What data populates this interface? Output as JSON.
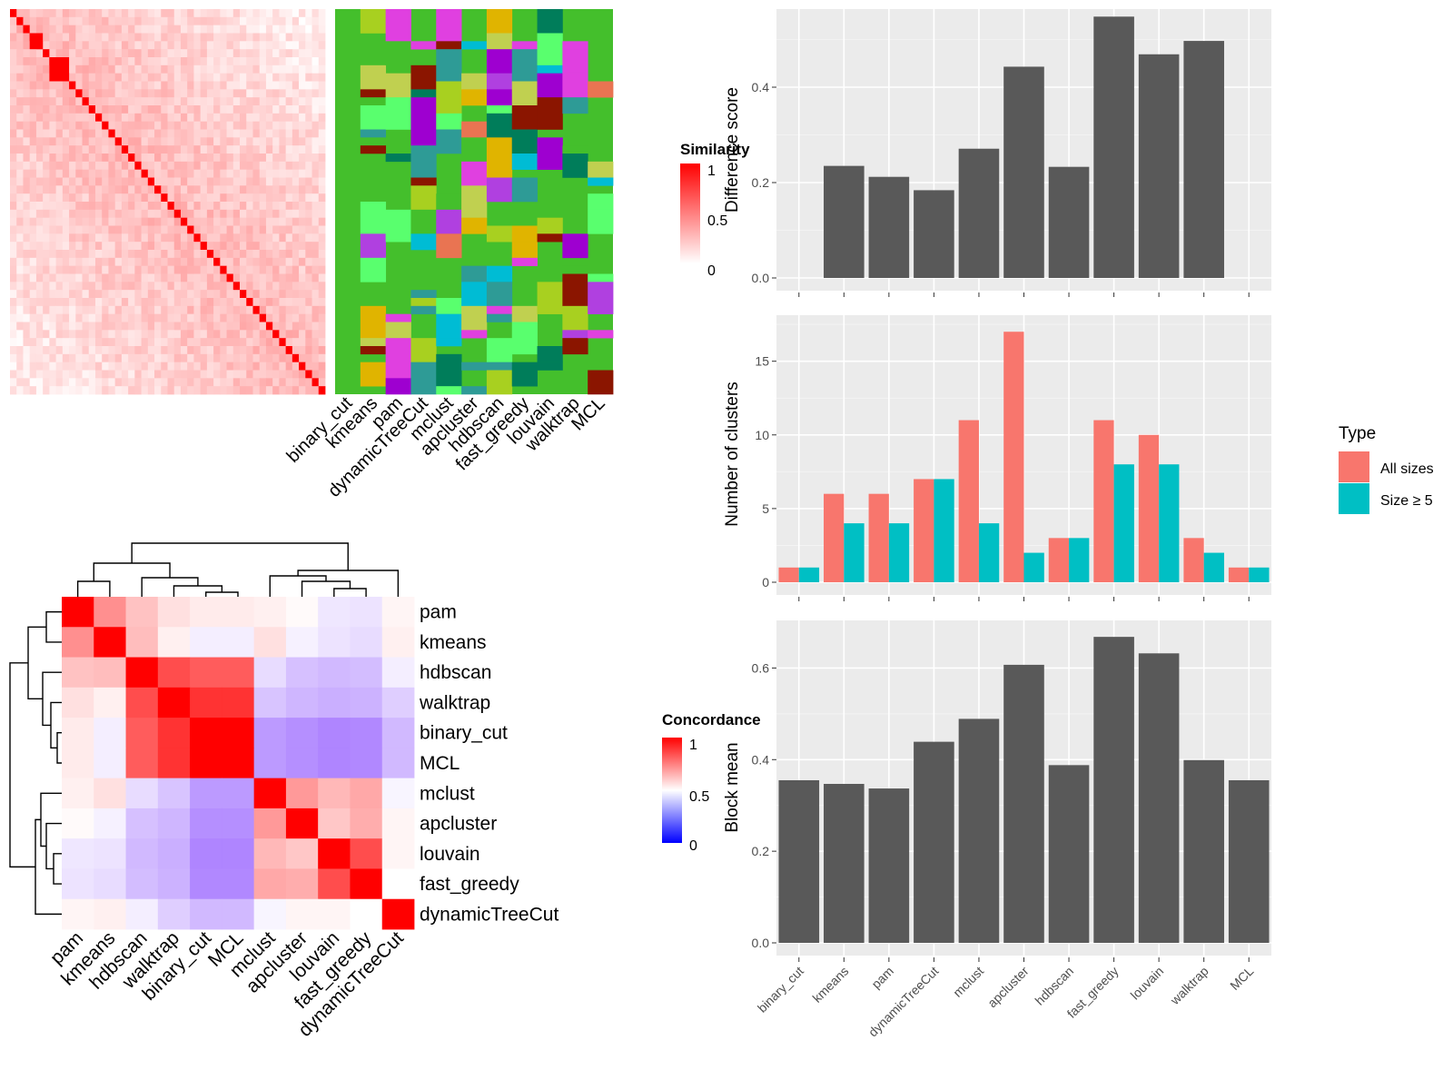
{
  "colors": {
    "bar_dark": "#595959",
    "panel_bg": "#ebebeb",
    "grid_major": "#ffffff",
    "all_sizes": "#F8766D",
    "size_ge5": "#00BFC4",
    "heat_high": "#ff0000",
    "heat_mid": "#ffffff",
    "heat_low": "#0000ff",
    "cluster_bg": "#44bf2c"
  },
  "similarity_heatmap": {
    "legend_title": "Similarity",
    "legend_ticks": [
      "1",
      "0.5",
      "0"
    ],
    "n": 48
  },
  "membership_heatmap": {
    "methods": [
      "binary_cut",
      "kmeans",
      "pam",
      "dynamicTreeCut",
      "mclust",
      "apcluster",
      "hdbscan",
      "fast_greedy",
      "louvain",
      "walktrap",
      "MCL"
    ],
    "palette": [
      "#44bf2c",
      "#00bcd4",
      "#e0b400",
      "#9e00d0",
      "#e040e0",
      "#e97452",
      "#007d5a",
      "#8b1500",
      "#59ff6e",
      "#a8d020",
      "#c0d050",
      "#2e9b96",
      "#b040e0"
    ]
  },
  "concordance_heatmap": {
    "legend_title": "Concordance",
    "legend_ticks": [
      "1",
      "0.5",
      "0"
    ],
    "methods": [
      "pam",
      "kmeans",
      "hdbscan",
      "walktrap",
      "binary_cut",
      "MCL",
      "mclust",
      "apcluster",
      "louvain",
      "fast_greedy",
      "dynamicTreeCut"
    ],
    "matrix": [
      [
        1.0,
        0.72,
        0.62,
        0.56,
        0.54,
        0.54,
        0.53,
        0.51,
        0.43,
        0.42,
        0.52
      ],
      [
        0.72,
        1.0,
        0.63,
        0.53,
        0.45,
        0.45,
        0.56,
        0.46,
        0.42,
        0.4,
        0.53
      ],
      [
        0.62,
        0.63,
        1.0,
        0.85,
        0.82,
        0.82,
        0.4,
        0.32,
        0.3,
        0.31,
        0.45
      ],
      [
        0.56,
        0.53,
        0.85,
        1.0,
        0.9,
        0.9,
        0.33,
        0.29,
        0.27,
        0.28,
        0.36
      ],
      [
        0.54,
        0.45,
        0.82,
        0.9,
        1.0,
        1.0,
        0.21,
        0.18,
        0.15,
        0.16,
        0.3
      ],
      [
        0.54,
        0.45,
        0.82,
        0.9,
        1.0,
        1.0,
        0.21,
        0.18,
        0.15,
        0.16,
        0.3
      ],
      [
        0.53,
        0.56,
        0.4,
        0.33,
        0.21,
        0.21,
        1.0,
        0.7,
        0.64,
        0.67,
        0.47
      ],
      [
        0.51,
        0.46,
        0.32,
        0.29,
        0.18,
        0.18,
        0.7,
        1.0,
        0.61,
        0.66,
        0.52
      ],
      [
        0.43,
        0.42,
        0.3,
        0.27,
        0.15,
        0.15,
        0.64,
        0.61,
        1.0,
        0.85,
        0.52
      ],
      [
        0.42,
        0.4,
        0.31,
        0.28,
        0.16,
        0.16,
        0.67,
        0.66,
        0.85,
        1.0,
        0.5
      ],
      [
        0.52,
        0.53,
        0.45,
        0.36,
        0.3,
        0.3,
        0.47,
        0.52,
        0.52,
        0.5,
        1.0
      ]
    ]
  },
  "chart_data": [
    {
      "type": "bar",
      "name": "difference_score",
      "ylabel": "Difference score",
      "categories": [
        "binary_cut",
        "kmeans",
        "pam",
        "dynamicTreeCut",
        "mclust",
        "apcluster",
        "hdbscan",
        "fast_greedy",
        "louvain",
        "walktrap",
        "MCL"
      ],
      "values": [
        0,
        0.235,
        0.212,
        0.184,
        0.271,
        0.443,
        0.233,
        0.548,
        0.469,
        0.497,
        0
      ],
      "ylim": [
        0,
        0.56
      ],
      "yticks": [
        0.0,
        0.2,
        0.4
      ],
      "ytick_labels": [
        "0.0",
        "0.2",
        "0.4"
      ]
    },
    {
      "type": "bar",
      "name": "number_of_clusters",
      "ylabel": "Number of clusters",
      "categories": [
        "binary_cut",
        "kmeans",
        "pam",
        "dynamicTreeCut",
        "mclust",
        "apcluster",
        "hdbscan",
        "fast_greedy",
        "louvain",
        "walktrap",
        "MCL"
      ],
      "series": [
        {
          "name": "All sizes",
          "values": [
            1,
            6,
            6,
            7,
            11,
            17,
            3,
            11,
            10,
            3,
            1
          ]
        },
        {
          "name": "Size ≥ 5",
          "values": [
            1,
            4,
            4,
            7,
            4,
            2,
            3,
            8,
            8,
            2,
            1
          ]
        }
      ],
      "legend_title": "Type",
      "legend_position": "right",
      "ylim": [
        0,
        18
      ],
      "yticks": [
        0,
        5,
        10,
        15
      ],
      "ytick_labels": [
        "0",
        "5",
        "10",
        "15"
      ]
    },
    {
      "type": "bar",
      "name": "block_mean",
      "ylabel": "Block mean",
      "categories": [
        "binary_cut",
        "kmeans",
        "pam",
        "dynamicTreeCut",
        "mclust",
        "apcluster",
        "hdbscan",
        "fast_greedy",
        "louvain",
        "walktrap",
        "MCL"
      ],
      "values": [
        0.355,
        0.347,
        0.337,
        0.439,
        0.489,
        0.607,
        0.388,
        0.668,
        0.632,
        0.399,
        0.355
      ],
      "ylim": [
        0,
        0.7
      ],
      "yticks": [
        0.0,
        0.2,
        0.4,
        0.6
      ],
      "ytick_labels": [
        "0.0",
        "0.2",
        "0.4",
        "0.6"
      ]
    }
  ]
}
